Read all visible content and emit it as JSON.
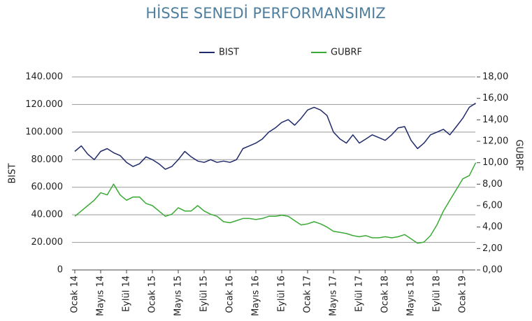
{
  "chart_data": {
    "type": "line",
    "title": "HİSSE SENEDİ PERFORMANSIMIZ",
    "y_label": "BIST",
    "y2_label": "GUBRF",
    "legend": "top",
    "categories": [
      "Ocak 14",
      null,
      null,
      null,
      "Mayıs 14",
      null,
      null,
      null,
      "Eylül 14",
      null,
      null,
      null,
      "Ocak 15",
      null,
      null,
      null,
      "Mayıs 15",
      null,
      null,
      null,
      "Eylül 15",
      null,
      null,
      null,
      "Ocak 16",
      null,
      null,
      null,
      "Mayıs 16",
      null,
      null,
      null,
      "Eylül 16",
      null,
      null,
      null,
      "Ocak 17",
      null,
      null,
      null,
      "Mayıs 17",
      null,
      null,
      null,
      "Eylül 17",
      null,
      null,
      null,
      "Ocak 18",
      null,
      null,
      null,
      "Mayıs 18",
      null,
      null,
      null,
      "Eylül 18",
      null,
      null,
      null,
      "Ocak 19",
      null,
      null
    ],
    "series": [
      {
        "name": "BIST",
        "color": "#1f2a6b",
        "values": [
          86000,
          90000,
          84000,
          80000,
          86000,
          88000,
          85000,
          83000,
          78000,
          75000,
          77000,
          82000,
          80000,
          77000,
          73000,
          75000,
          80000,
          86000,
          82000,
          79000,
          78000,
          80000,
          78000,
          79000,
          78000,
          80000,
          88000,
          90000,
          92000,
          95000,
          100000,
          103000,
          107000,
          109000,
          105000,
          110000,
          116000,
          118000,
          116000,
          112000,
          100000,
          95000,
          92000,
          98000,
          92000,
          95000,
          98000,
          96000,
          94000,
          98000,
          103000,
          104000,
          94000,
          88000,
          92000,
          98000,
          100000,
          102000,
          98000,
          104000,
          110000,
          118000,
          121000
        ]
      },
      {
        "name": "GUBRF",
        "color": "#3aaa35",
        "axis": "y2",
        "values": [
          5.0,
          5.5,
          6.0,
          6.5,
          7.2,
          7.0,
          8.0,
          7.0,
          6.5,
          6.8,
          6.8,
          6.2,
          6.0,
          5.5,
          5.0,
          5.2,
          5.8,
          5.5,
          5.5,
          6.0,
          5.5,
          5.2,
          5.0,
          4.5,
          4.4,
          4.6,
          4.8,
          4.8,
          4.7,
          4.8,
          5.0,
          5.0,
          5.1,
          5.0,
          4.6,
          4.2,
          4.3,
          4.5,
          4.3,
          4.0,
          3.6,
          3.5,
          3.4,
          3.2,
          3.1,
          3.2,
          3.0,
          3.0,
          3.1,
          3.0,
          3.1,
          3.3,
          2.9,
          2.5,
          2.6,
          3.2,
          4.2,
          5.5,
          6.5,
          7.5,
          8.5,
          8.8,
          10.0
        ]
      }
    ],
    "ylim": [
      0,
      140000
    ],
    "yticks": [
      0,
      {
        "value": 20000,
        "label": "20.000"
      },
      {
        "value": 40000,
        "label": "40.000"
      },
      {
        "value": 60000,
        "label": "60.000"
      },
      {
        "value": 80000,
        "label": "80.000"
      },
      {
        "value": 100000,
        "label": "100.000"
      },
      {
        "value": 120000,
        "label": "120.000"
      },
      {
        "value": 140000,
        "label": "140.000"
      }
    ],
    "y2lim": [
      0,
      18
    ],
    "y2ticks": [
      {
        "value": 0,
        "label": "0,00"
      },
      {
        "value": 2,
        "label": "2,00"
      },
      {
        "value": 4,
        "label": "4,00"
      },
      {
        "value": 6,
        "label": "6,00"
      },
      {
        "value": 8,
        "label": "8,00"
      },
      {
        "value": 10,
        "label": "10,00"
      },
      {
        "value": 12,
        "label": "12,00"
      },
      {
        "value": 14,
        "label": "14,00"
      },
      {
        "value": 16,
        "label": "16,00"
      },
      {
        "value": 18,
        "label": "18,00"
      }
    ],
    "grid": true
  }
}
